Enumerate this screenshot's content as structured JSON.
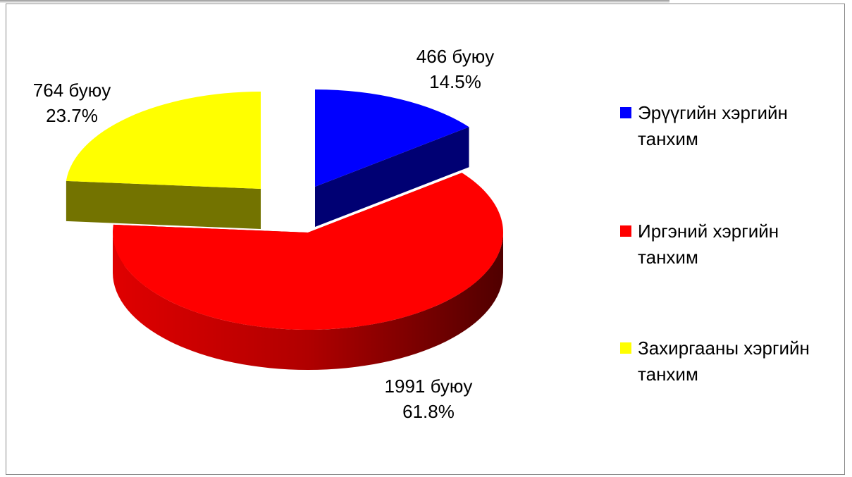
{
  "chart_data": {
    "type": "pie",
    "categories": [
      "Эрүүгийн хэргийн танхим",
      "Иргэний хэргийн танхим",
      "Захиргааны хэргийн танхим"
    ],
    "values": [
      466,
      1991,
      764
    ],
    "value_labels": [
      "466 буюу 14.5%",
      "1991 буюу 61.8%",
      "764 буюу 23.7%"
    ],
    "colors": [
      "#0000ff",
      "#ff0000",
      "#ffff00"
    ],
    "legend": "right"
  }
}
